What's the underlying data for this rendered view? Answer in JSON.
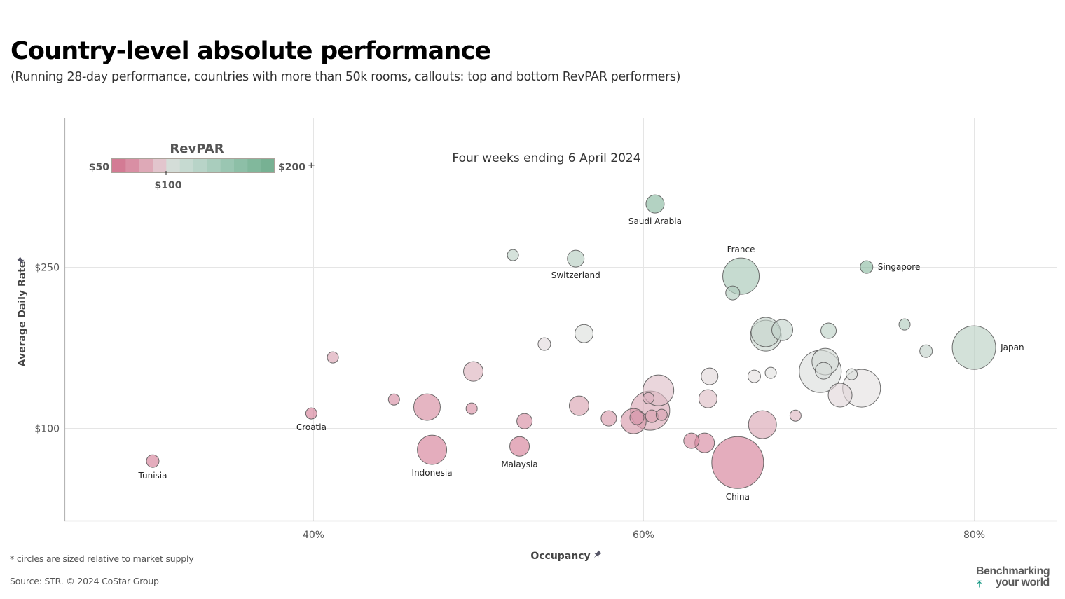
{
  "header": {
    "title": "Country-level absolute performance",
    "subtitle": "(Running 28-day performance, countries with more than 50k rooms, callouts: top and bottom RevPAR performers)"
  },
  "footer": {
    "footnote": "* circles are sized relative to market supply",
    "source": "Source: STR. © 2024 CoStar Group",
    "brand_line1": "Benchmarking",
    "brand_line2": "your world",
    "brand_icon": "arrow-up-icon"
  },
  "legend": {
    "title": "RevPAR",
    "min_label": "$50",
    "max_label": "$200",
    "max_suffix": "+",
    "mid_label": "$100",
    "colors": [
      "#d37b94",
      "#d98fa4",
      "#dea9b7",
      "#e2c5cd",
      "#d4ddd8",
      "#c6dad1",
      "#b8d4c8",
      "#a9cdbd",
      "#9ac6b2",
      "#8dbfa7",
      "#81b89c",
      "#77b193"
    ]
  },
  "colors": {
    "low": "#d37b94",
    "mid": "#e3e1e1",
    "high": "#77b193",
    "bubble_stroke": "#555555",
    "grid": "#e5e5e5",
    "axis": "#b5b5b5"
  },
  "chart_data": {
    "type": "scatter",
    "title": "Four weeks ending 6 April 2024",
    "xlabel": "Occupancy",
    "ylabel": "Average Daily Rate",
    "xlim": [
      25,
      85
    ],
    "ylim": [
      14,
      389
    ],
    "x_ticks": [
      40,
      60,
      80
    ],
    "x_tick_labels": [
      "40%",
      "60%",
      "80%"
    ],
    "y_ticks": [
      100,
      250
    ],
    "y_tick_labels": [
      "$100",
      "$250"
    ],
    "grid": true,
    "legend_position": "top-left",
    "size_meaning": "relative market supply",
    "color_meaning": "RevPAR",
    "color_range": [
      50,
      200
    ],
    "points": [
      {
        "label": "Saudi Arabia",
        "label_pos": "below",
        "occupancy": 60.7,
        "adr": 308.7,
        "size": 169
      },
      {
        "label": "",
        "occupancy": 52.1,
        "adr": 261.1,
        "size": 64
      },
      {
        "label": "Switzerland",
        "label_pos": "below",
        "occupancy": 55.9,
        "adr": 257.8,
        "size": 144
      },
      {
        "label": "France",
        "label_pos": "above",
        "occupancy": 65.9,
        "adr": 241.5,
        "size": 676
      },
      {
        "label": "",
        "occupancy": 65.4,
        "adr": 225.9,
        "size": 100
      },
      {
        "label": "Singapore",
        "label_pos": "right",
        "occupancy": 73.5,
        "adr": 250.0,
        "size": 81
      },
      {
        "label": "",
        "occupancy": 67.4,
        "adr": 189.4,
        "size": 441
      },
      {
        "label": "",
        "occupancy": 67.4,
        "adr": 186.1,
        "size": 484
      },
      {
        "label": "",
        "occupancy": 68.4,
        "adr": 191.3,
        "size": 225
      },
      {
        "label": "",
        "occupancy": 71.2,
        "adr": 190.7,
        "size": 121
      },
      {
        "label": "",
        "occupancy": 75.8,
        "adr": 196.5,
        "size": 64
      },
      {
        "label": "",
        "occupancy": 77.1,
        "adr": 171.7,
        "size": 81
      },
      {
        "label": "Japan",
        "label_pos": "right",
        "occupancy": 80.0,
        "adr": 175.0,
        "size": 961
      },
      {
        "label": "",
        "occupancy": 56.4,
        "adr": 188.0,
        "size": 169
      },
      {
        "label": "",
        "occupancy": 54.0,
        "adr": 178.3,
        "size": 81
      },
      {
        "label": "",
        "occupancy": 41.2,
        "adr": 165.9,
        "size": 64
      },
      {
        "label": "",
        "occupancy": 49.7,
        "adr": 152.8,
        "size": 196
      },
      {
        "label": "",
        "occupancy": 44.9,
        "adr": 126.7,
        "size": 64
      },
      {
        "label": "",
        "occupancy": 46.9,
        "adr": 119.6,
        "size": 361
      },
      {
        "label": "",
        "occupancy": 49.6,
        "adr": 118.3,
        "size": 64
      },
      {
        "label": "",
        "occupancy": 52.8,
        "adr": 106.5,
        "size": 121
      },
      {
        "label": "",
        "occupancy": 56.1,
        "adr": 120.9,
        "size": 196
      },
      {
        "label": "",
        "occupancy": 57.9,
        "adr": 109.1,
        "size": 121
      },
      {
        "label": "Indonesia",
        "label_pos": "below",
        "occupancy": 47.2,
        "adr": 79.8,
        "size": 441
      },
      {
        "label": "Malaysia",
        "label_pos": "below",
        "occupancy": 52.5,
        "adr": 83.0,
        "size": 196
      },
      {
        "label": "Croatia",
        "label_pos": "below",
        "occupancy": 39.9,
        "adr": 113.7,
        "size": 64
      },
      {
        "label": "Tunisia",
        "label_pos": "below",
        "occupancy": 30.3,
        "adr": 69.3,
        "size": 81
      },
      {
        "label": "",
        "occupancy": 60.9,
        "adr": 135.2,
        "size": 484
      },
      {
        "label": "",
        "occupancy": 60.4,
        "adr": 116.3,
        "size": 784
      },
      {
        "label": "",
        "occupancy": 59.4,
        "adr": 106.5,
        "size": 324
      },
      {
        "label": "",
        "occupancy": 59.6,
        "adr": 109.8,
        "size": 100
      },
      {
        "label": "",
        "occupancy": 60.5,
        "adr": 111.1,
        "size": 81
      },
      {
        "label": "",
        "occupancy": 61.1,
        "adr": 112.4,
        "size": 64
      },
      {
        "label": "",
        "occupancy": 60.3,
        "adr": 128.0,
        "size": 64
      },
      {
        "label": "",
        "occupancy": 64.0,
        "adr": 148.3,
        "size": 144
      },
      {
        "label": "",
        "occupancy": 63.9,
        "adr": 127.4,
        "size": 169
      },
      {
        "label": "",
        "occupancy": 62.9,
        "adr": 88.3,
        "size": 121
      },
      {
        "label": "",
        "occupancy": 63.7,
        "adr": 86.3,
        "size": 196
      },
      {
        "label": "China",
        "label_pos": "below",
        "occupancy": 65.7,
        "adr": 68.0,
        "size": 1369
      },
      {
        "label": "",
        "occupancy": 67.2,
        "adr": 103.3,
        "size": 400
      },
      {
        "label": "",
        "occupancy": 69.2,
        "adr": 111.7,
        "size": 64
      },
      {
        "label": "",
        "occupancy": 66.7,
        "adr": 148.3,
        "size": 81
      },
      {
        "label": "",
        "occupancy": 67.7,
        "adr": 151.5,
        "size": 64
      },
      {
        "label": "",
        "occupancy": 70.7,
        "adr": 152.8,
        "size": 900
      },
      {
        "label": "",
        "occupancy": 71.0,
        "adr": 162.0,
        "size": 361
      },
      {
        "label": "",
        "occupancy": 70.9,
        "adr": 153.5,
        "size": 144
      },
      {
        "label": "",
        "occupancy": 72.6,
        "adr": 150.2,
        "size": 64
      },
      {
        "label": "",
        "occupancy": 71.9,
        "adr": 130.7,
        "size": 289
      },
      {
        "label": "",
        "occupancy": 73.2,
        "adr": 137.2,
        "size": 729
      }
    ]
  }
}
